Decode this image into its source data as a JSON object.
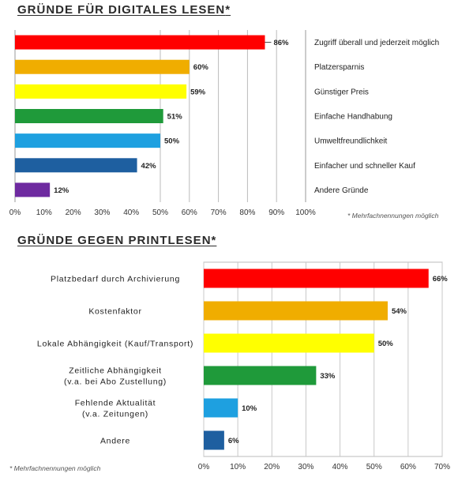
{
  "chart_data": [
    {
      "type": "bar",
      "orientation": "horizontal",
      "title": "GRÜNDE FÜR DIGITALES LESEN",
      "title_mark": "*",
      "note": "* Mehrfachnennungen möglich",
      "categories": [
        "Zugriff überall und jederzeit möglich",
        "Platzersparnis",
        "Günstiger Preis",
        "Einfache Handhabung",
        "Umweltfreundlichkeit",
        "Einfacher und schneller Kauf",
        "Andere Gründe"
      ],
      "values": [
        86,
        60,
        59,
        51,
        50,
        42,
        12
      ],
      "value_labels": [
        "86%",
        "60%",
        "59%",
        "51%",
        "50%",
        "42%",
        "12%"
      ],
      "colors": [
        "#ff0000",
        "#f0ad00",
        "#ffff00",
        "#1f9a3a",
        "#1ea0e0",
        "#1e5fa0",
        "#6e2aa0"
      ],
      "ticks": [
        "0%",
        "10%",
        "20%",
        "30%",
        "40%",
        "50%",
        "60%",
        "70%",
        "80%",
        "90%",
        "100%"
      ],
      "xlim": [
        0,
        100
      ],
      "legend": "none",
      "grid": "vertical"
    },
    {
      "type": "bar",
      "orientation": "horizontal",
      "title": "GRÜNDE GEGEN PRINTLESEN",
      "title_mark": "*",
      "note": "* Mehrfachnennungen möglich",
      "categories": [
        [
          "Platzbedarf durch Archivierung"
        ],
        [
          "Kostenfaktor"
        ],
        [
          "Lokale Abhängigkeit (Kauf/Transport)"
        ],
        [
          "Zeitliche Abhängigkeit",
          "(v.a. bei Abo Zustellung)"
        ],
        [
          "Fehlende Aktualität",
          "(v.a. Zeitungen)"
        ],
        [
          "Andere"
        ]
      ],
      "values": [
        66,
        54,
        50,
        33,
        10,
        6
      ],
      "value_labels": [
        "66%",
        "54%",
        "50%",
        "33%",
        "10%",
        "6%"
      ],
      "colors": [
        "#ff0000",
        "#f0ad00",
        "#ffff00",
        "#1f9a3a",
        "#1ea0e0",
        "#1e5fa0"
      ],
      "ticks": [
        "0%",
        "10%",
        "20%",
        "30%",
        "40%",
        "50%",
        "60%",
        "70%"
      ],
      "xlim": [
        0,
        70
      ],
      "legend": "none",
      "grid": "vertical"
    }
  ]
}
